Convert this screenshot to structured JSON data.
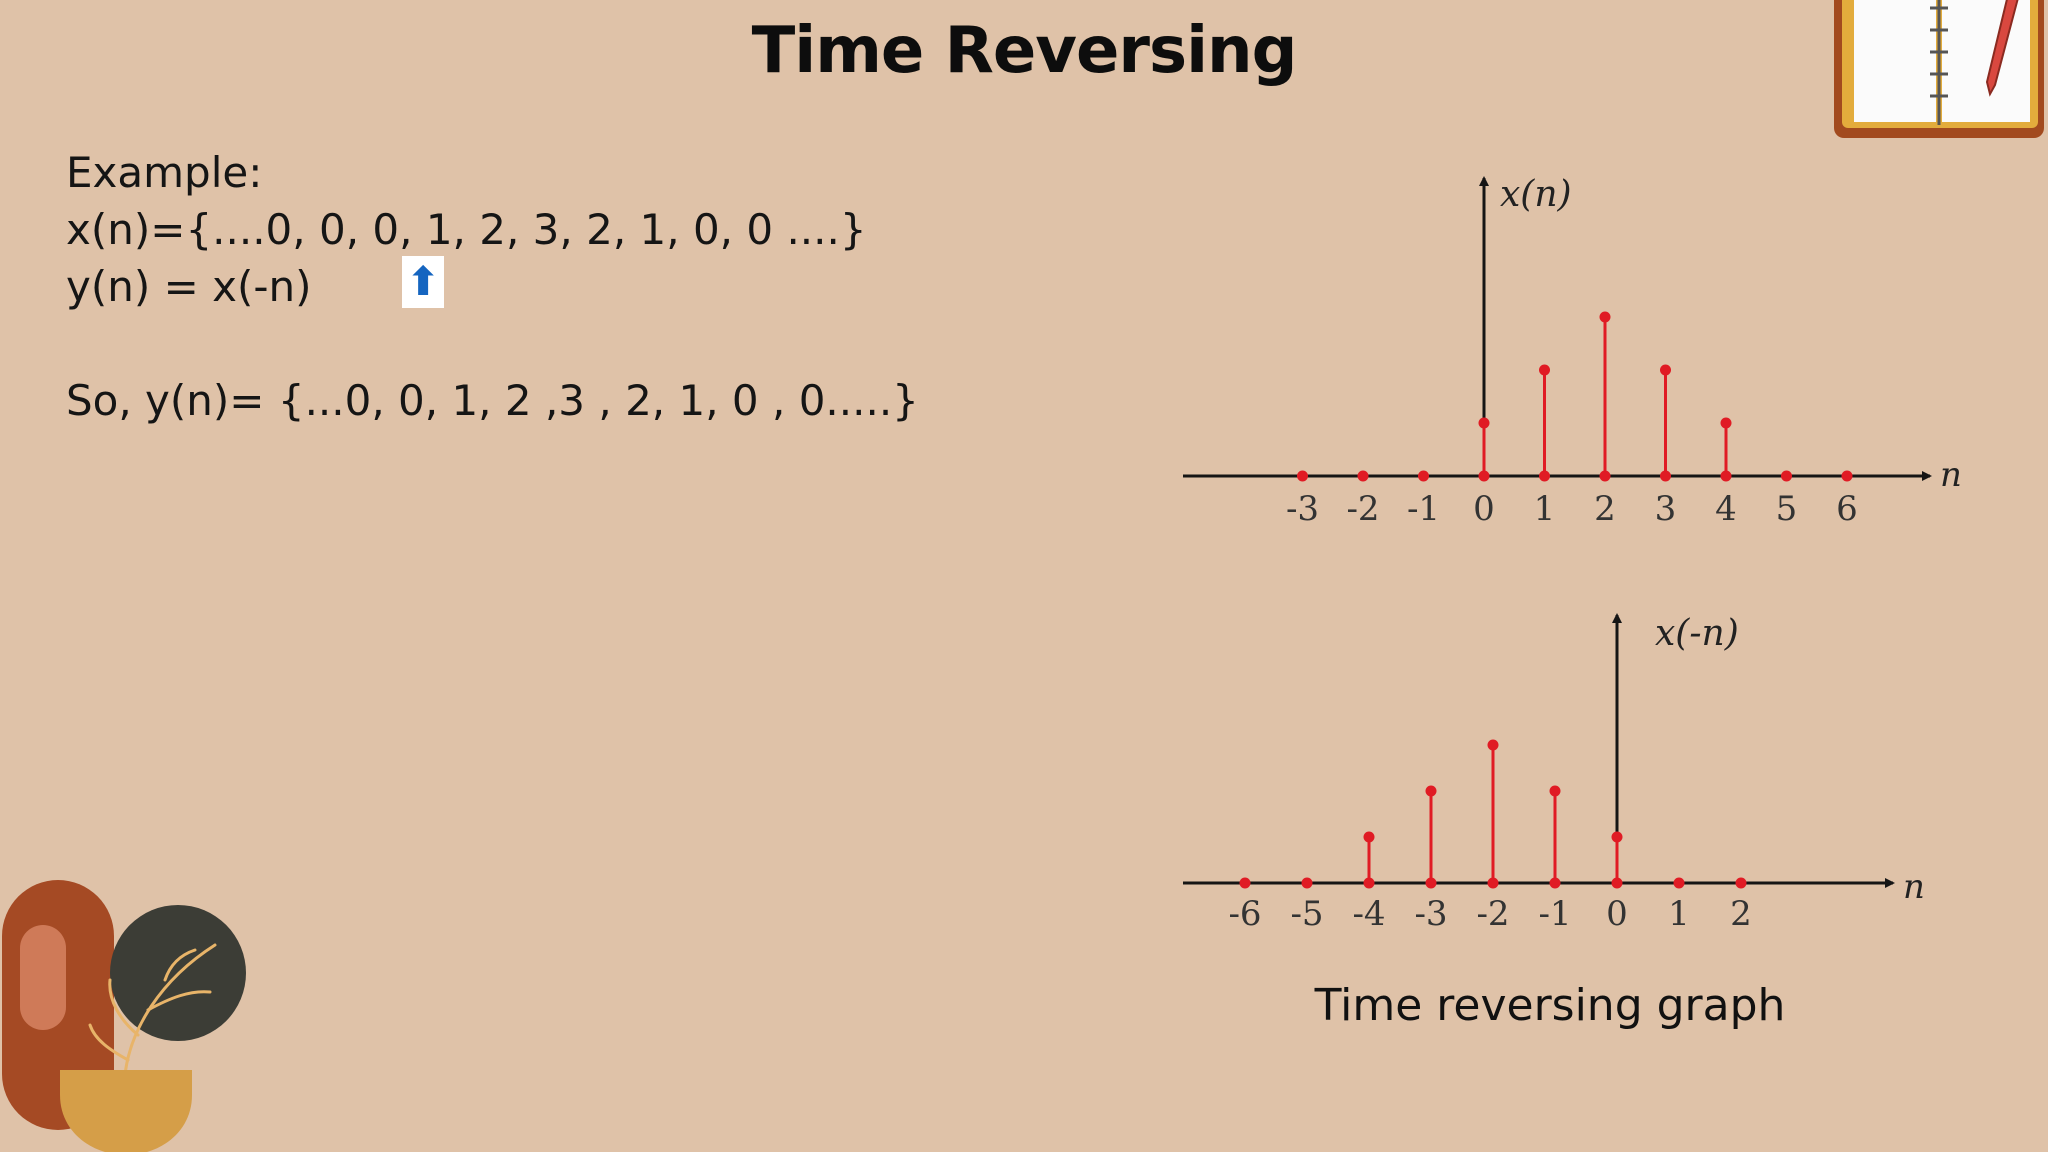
{
  "slide": {
    "title": "Time Reversing",
    "lines": [
      "Example:",
      "x(n)={....0, 0, 0, 1, 2, 3, 2, 1, 0, 0 ....}",
      "y(n) = x(-n)"
    ],
    "result": "So, y(n)= {...0, 0, 1, 2 ,3 , 2, 1, 0 , 0.....}",
    "arrow_glyph": "⬆",
    "caption": "Time reversing graph"
  },
  "colors": {
    "background": "#dfc2a8",
    "stem": "#e01b24",
    "axis": "#151515"
  },
  "chart_data": [
    {
      "type": "stem",
      "ylabel": "x(n)",
      "xlabel": "n",
      "x": [
        -3,
        -2,
        -1,
        0,
        1,
        2,
        3,
        4,
        5,
        6
      ],
      "y": [
        0,
        0,
        0,
        1,
        2,
        3,
        2,
        1,
        0,
        0
      ],
      "tick_labels": [
        "-3",
        "-2",
        "-1",
        "0",
        "1",
        "2",
        "3",
        "4",
        "5",
        "6"
      ],
      "xlim": [
        -5,
        8
      ],
      "ylim": [
        0,
        3.4
      ]
    },
    {
      "type": "stem",
      "ylabel": "x(-n)",
      "xlabel": "n",
      "x": [
        -6,
        -5,
        -4,
        -3,
        -2,
        -1,
        0,
        1,
        2
      ],
      "y": [
        0,
        0,
        1,
        2,
        3,
        2,
        1,
        0,
        0
      ],
      "tick_labels": [
        "-6",
        "-5",
        "-4",
        "-3",
        "-2",
        "-1",
        "0",
        "1",
        "2"
      ],
      "xlim": [
        -7,
        6
      ],
      "ylim": [
        0,
        3.4
      ]
    }
  ]
}
